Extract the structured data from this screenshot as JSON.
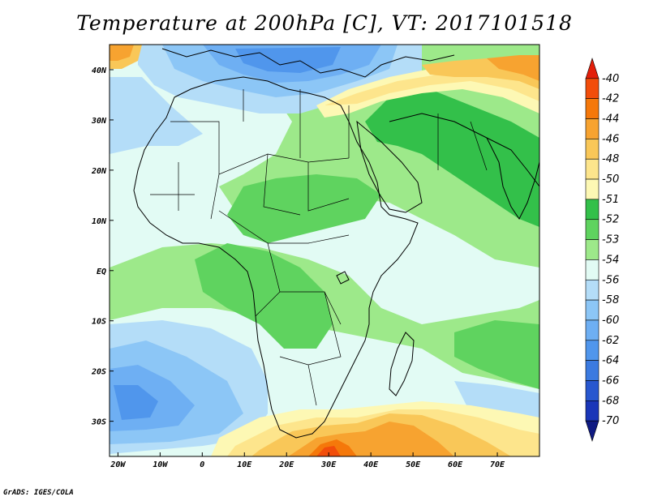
{
  "title": "Temperature at 200hPa [C], VT: 2017101518",
  "footer": "GrADS: IGES/COLA",
  "map": {
    "lon_range": [
      -22,
      80
    ],
    "lat_range": [
      -37,
      45
    ],
    "lon_ticks": [
      {
        "value": -20,
        "label": "20W"
      },
      {
        "value": -10,
        "label": "10W"
      },
      {
        "value": 0,
        "label": "0"
      },
      {
        "value": 10,
        "label": "10E"
      },
      {
        "value": 20,
        "label": "20E"
      },
      {
        "value": 30,
        "label": "30E"
      },
      {
        "value": 40,
        "label": "40E"
      },
      {
        "value": 50,
        "label": "50E"
      },
      {
        "value": 60,
        "label": "60E"
      },
      {
        "value": 70,
        "label": "70E"
      }
    ],
    "lat_ticks": [
      {
        "value": 40,
        "label": "40N"
      },
      {
        "value": 30,
        "label": "30N"
      },
      {
        "value": 20,
        "label": "20N"
      },
      {
        "value": 10,
        "label": "10N"
      },
      {
        "value": 0,
        "label": "EQ"
      },
      {
        "value": -10,
        "label": "10S"
      },
      {
        "value": -20,
        "label": "20S"
      },
      {
        "value": -30,
        "label": "30S"
      }
    ]
  },
  "colorbar": {
    "labels": [
      "-40",
      "-42",
      "-44",
      "-46",
      "-48",
      "-50",
      "-51",
      "-52",
      "-53",
      "-54",
      "-56",
      "-58",
      "-60",
      "-62",
      "-64",
      "-66",
      "-68",
      "-70"
    ],
    "colors": [
      "#e31e0a",
      "#f24d0a",
      "#f5780a",
      "#f7a330",
      "#f9c758",
      "#fde58c",
      "#fdf8b4",
      "#33c04a",
      "#5fd35f",
      "#9de98a",
      "#e2fbf4",
      "#b4ddf8",
      "#8cc6f6",
      "#6eaff3",
      "#5096ec",
      "#3b7ae0",
      "#2857cf",
      "#1a36b8",
      "#0f1a82"
    ]
  }
}
